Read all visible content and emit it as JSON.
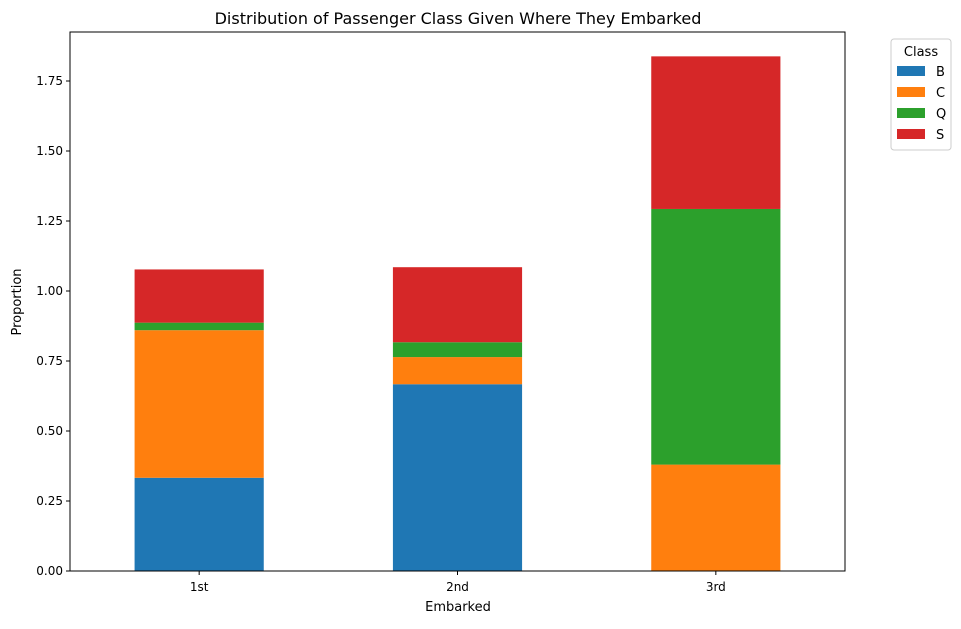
{
  "chart_data": {
    "type": "bar",
    "stacked": true,
    "title": "Distribution of Passenger Class Given Where They Embarked",
    "xlabel": "Embarked",
    "ylabel": "Proportion",
    "categories": [
      "1st",
      "2nd",
      "3rd"
    ],
    "ylim": [
      0,
      1.925
    ],
    "yticks": [
      "0.00",
      "0.25",
      "0.50",
      "0.75",
      "1.00",
      "1.25",
      "1.50",
      "1.75"
    ],
    "grid": false,
    "legend_title": "Class",
    "legend_position": "upper-right-outside",
    "series": [
      {
        "name": "B",
        "color": "#1f77b4",
        "values": [
          0.333,
          0.667,
          0.0
        ]
      },
      {
        "name": "C",
        "color": "#ff7f0e",
        "values": [
          0.527,
          0.097,
          0.38
        ]
      },
      {
        "name": "Q",
        "color": "#2ca02c",
        "values": [
          0.027,
          0.053,
          0.913
        ]
      },
      {
        "name": "S",
        "color": "#d62728",
        "values": [
          0.19,
          0.268,
          0.545
        ]
      }
    ]
  }
}
